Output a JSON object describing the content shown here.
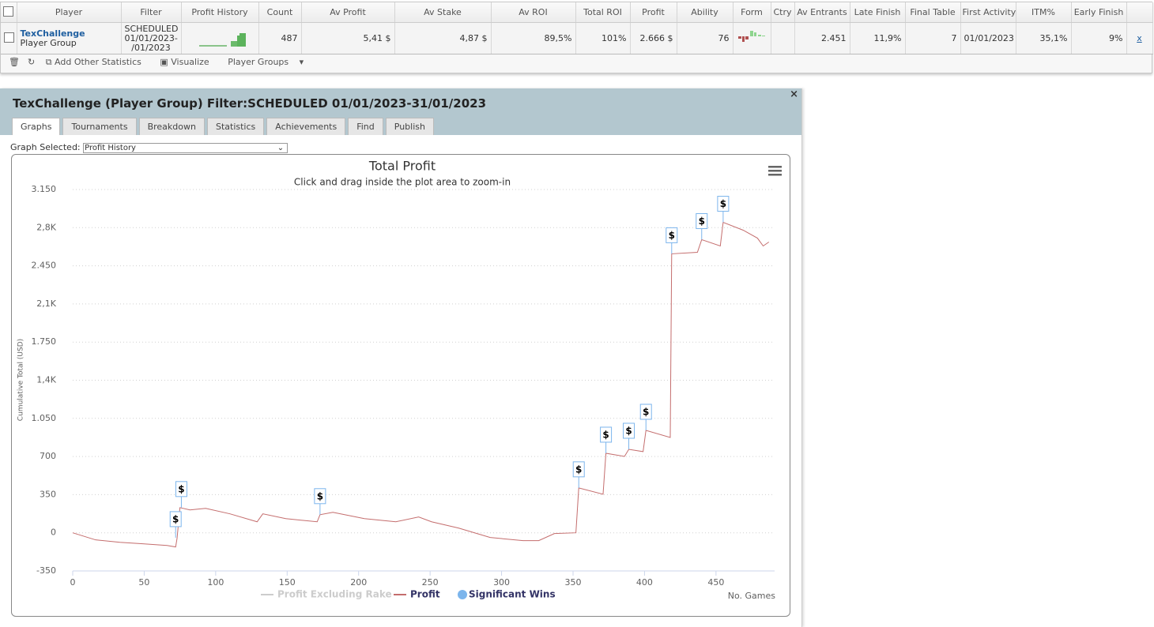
{
  "table": {
    "columns": [
      "Player",
      "Filter",
      "Profit History",
      "Count",
      "Av Profit",
      "Av Stake",
      "Av ROI",
      "Total ROI",
      "Profit",
      "Ability",
      "Form",
      "Ctry",
      "Av Entrants",
      "Late Finish",
      "Final Table",
      "First Activity",
      "ITM%",
      "Early Finish"
    ],
    "rows": [
      {
        "player": "TexChallenge",
        "player_type": "Player Group",
        "filter": [
          "SCHEDULED",
          "01/01/2023-",
          "/01/2023"
        ],
        "count": "487",
        "av_profit": "5,41 $",
        "av_stake": "4,87 $",
        "av_roi": "89,5%",
        "total_roi": "101%",
        "profit": "2.666 $",
        "ability": "76",
        "av_entrants": "2.451",
        "late_finish": "11,9%",
        "final_tables": "7",
        "first_activity": "01/01/2023",
        "itm": "35,1%",
        "early_finish": "9%",
        "remove": "x"
      }
    ]
  },
  "toolbar": {
    "items": [
      "Add Other Statistics",
      "Visualize",
      "Player Groups"
    ]
  },
  "panel": {
    "title": "TexChallenge (Player Group) Filter:SCHEDULED 01/01/2023-31/01/2023",
    "close": "×",
    "tabs": [
      "Graphs",
      "Tournaments",
      "Breakdown",
      "Statistics",
      "Achievements",
      "Find",
      "Publish"
    ],
    "graph_selected_label": "Graph Selected:",
    "graph_selected": "Profit History"
  },
  "chart_data": {
    "type": "line",
    "title": "Total Profit",
    "subtitle": "Click and drag inside the plot area to zoom-in",
    "x_label": "No. Games",
    "y_label": "Cumulative Total (USD)",
    "xlim": [
      0,
      491
    ],
    "xticks": [
      0,
      50,
      100,
      150,
      200,
      250,
      300,
      350,
      400,
      450
    ],
    "ylim": [
      -350,
      3150
    ],
    "yticks": [
      -350,
      0,
      350,
      700,
      {
        "value": 1050,
        "label": "1.050"
      },
      {
        "value": 1400,
        "label": "1,4K"
      },
      {
        "value": 1750,
        "label": "1.750"
      },
      {
        "value": 2100,
        "label": "2,1K"
      },
      {
        "value": 2450,
        "label": "2.450"
      },
      {
        "value": 2800,
        "label": "2,8K"
      },
      {
        "value": 3150,
        "label": "3.150"
      }
    ],
    "grid": true,
    "x": [
      0,
      16,
      33,
      49,
      66,
      72,
      73,
      75,
      82,
      93,
      110,
      129,
      133,
      149,
      171,
      173,
      182,
      204,
      226,
      242,
      251,
      270,
      292,
      315,
      326,
      337,
      352,
      354,
      371,
      373,
      386,
      389,
      399,
      401,
      418,
      419,
      437,
      440,
      453,
      455,
      469,
      479,
      483,
      487
    ],
    "series": [
      {
        "name": "Profit Excluding Rake",
        "color": "#cccccc",
        "visible": false
      },
      {
        "name": "Profit",
        "color": "#c46d6d",
        "values": [
          0,
          -65,
          -87,
          -101,
          -116,
          -130,
          -51,
          231,
          210,
          224,
          174,
          101,
          174,
          130,
          101,
          166,
          188,
          130,
          101,
          145,
          101,
          43,
          -43,
          -72,
          -72,
          -7,
          0,
          412,
          354,
          730,
          701,
          766,
          745,
          940,
          875,
          2560,
          2574,
          2690,
          2632,
          2849,
          2777,
          2704,
          2632,
          2668
        ]
      },
      {
        "name": "Significant Wins",
        "color": "#7cb5ec",
        "type": "flags",
        "flag_text": "$",
        "x": [
          72,
          76,
          173,
          354,
          373,
          389,
          401,
          419,
          440,
          455
        ],
        "values": [
          -45,
          231,
          166,
          412,
          730,
          766,
          940,
          2560,
          2690,
          2849
        ]
      }
    ]
  }
}
